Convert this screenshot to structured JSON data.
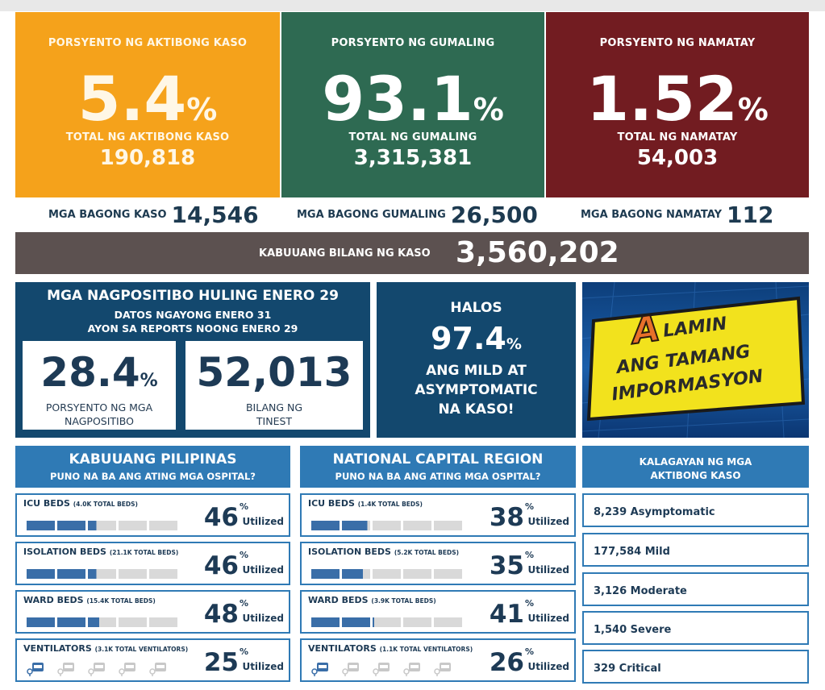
{
  "top": {
    "active": {
      "label": "PORSYENTO NG AKTIBONG KASO",
      "percent": "5.4",
      "total_label": "TOTAL NG AKTIBONG KASO",
      "total": "190,818",
      "color": "#f5a21b"
    },
    "recovered": {
      "label": "PORSYENTO NG GUMALING",
      "percent": "93.1",
      "total_label": "TOTAL NG GUMALING",
      "total": "3,315,381",
      "color": "#2e6a52"
    },
    "deaths": {
      "label": "PORSYENTO NG NAMATAY",
      "percent": "1.52",
      "total_label": "TOTAL NG NAMATAY",
      "total": "54,003",
      "color": "#721c21"
    },
    "percent_sign": "%"
  },
  "new": {
    "cases_label": "MGA BAGONG KASO",
    "cases": "14,546",
    "recovered_label": "MGA BAGONG GUMALING",
    "recovered": "26,500",
    "deaths_label": "MGA BAGONG NAMATAY",
    "deaths": "112"
  },
  "total": {
    "label": "KABUUANG BILANG NG KASO",
    "value": "3,560,202"
  },
  "positivity": {
    "title": "MGA NAGPOSITIBO HULING ENERO 29",
    "sub1": "DATOS NGAYONG ENERO 31",
    "sub2": "AYON SA REPORTS NOONG ENERO 29",
    "rate": "28.4",
    "rate_caption1": "PORSYENTO NG MGA",
    "rate_caption2": "NAGPOSITIBO",
    "tested": "52,013",
    "tested_caption1": "BILANG NG",
    "tested_caption2": "TINEST"
  },
  "mild": {
    "line1": "HALOS",
    "percent": "97.4",
    "line2": "ANG MILD AT",
    "line3": "ASYMPTOMATIC",
    "line4": "NA KASO!"
  },
  "promo": {
    "line1": "LAMIN",
    "initial": "A",
    "line2": "ANG TAMANG",
    "line3": "IMPORMASYON"
  },
  "ph": {
    "title": "KABUUANG PILIPINAS",
    "subtitle": "PUNO NA BA ANG ATING MGA OSPITAL?",
    "rows": [
      {
        "name": "ICU BEDS",
        "beds": "(4.0K TOTAL BEDS)",
        "pct": "46",
        "fill": 0.46
      },
      {
        "name": "ISOLATION BEDS",
        "beds": "(21.1K TOTAL BEDS)",
        "pct": "46",
        "fill": 0.46
      },
      {
        "name": "WARD BEDS",
        "beds": "(15.4K TOTAL BEDS)",
        "pct": "48",
        "fill": 0.48
      },
      {
        "name": "VENTILATORS",
        "beds": "(3.1K TOTAL VENTILATORS)",
        "pct": "25",
        "fill": 0.25
      }
    ]
  },
  "ncr": {
    "title": "NATIONAL CAPITAL REGION",
    "subtitle": "PUNO NA BA ANG ATING MGA OSPITAL?",
    "rows": [
      {
        "name": "ICU BEDS",
        "beds": "(1.4K TOTAL BEDS)",
        "pct": "38",
        "fill": 0.38
      },
      {
        "name": "ISOLATION BEDS",
        "beds": "(5.2K TOTAL BEDS)",
        "pct": "35",
        "fill": 0.35
      },
      {
        "name": "WARD BEDS",
        "beds": "(3.9K TOTAL BEDS)",
        "pct": "41",
        "fill": 0.41
      },
      {
        "name": "VENTILATORS",
        "beds": "(1.1K TOTAL VENTILATORS)",
        "pct": "26",
        "fill": 0.26
      }
    ]
  },
  "utilized_label": "Utilized",
  "status": {
    "title1": "KALAGAYAN NG MGA",
    "title2": "AKTIBONG KASO",
    "items": [
      "8,239 Asymptomatic",
      "177,584 Mild",
      "3,126 Moderate",
      "1,540 Severe",
      "329 Critical"
    ]
  },
  "colors": {
    "navy": "#13486e",
    "section_blue": "#2f7ab5",
    "bar_fill": "#3a6ea8",
    "bar_empty": "#d9d9d9",
    "total_bar": "#5c5150"
  }
}
